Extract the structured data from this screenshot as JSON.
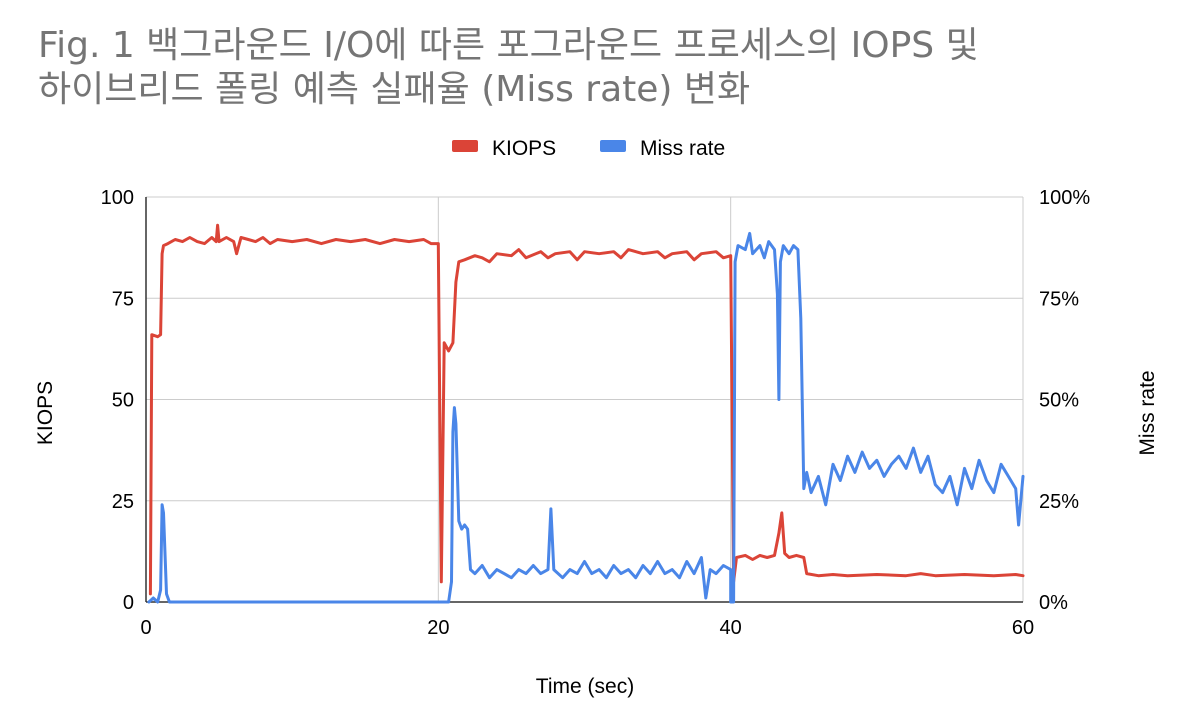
{
  "title_line1": "Fig. 1 백그라운드 I/O에 따른 포그라운드 프로세스의 IOPS 및",
  "title_line2": "하이브리드 폴링 예측 실패율 (Miss rate) 변화",
  "colors": {
    "kiops": "#db4437",
    "miss_rate": "#4a86e8",
    "grid": "#cccccc",
    "axis": "#333333"
  },
  "chart_data": {
    "type": "line",
    "title": "Fig. 1 백그라운드 I/O에 따른 포그라운드 프로세스의 IOPS 및 하이브리드 폴링 예측 실패율 (Miss rate) 변화",
    "xlabel": "Time (sec)",
    "ylabel": "KIOPS",
    "y2label": "Miss rate",
    "xlim": [
      0,
      60
    ],
    "ylim": [
      0,
      100
    ],
    "y2lim": [
      0,
      1
    ],
    "x_ticks": [
      "0",
      "20",
      "40",
      "60"
    ],
    "y_ticks": [
      "0",
      "25",
      "50",
      "75",
      "100"
    ],
    "y2_ticks": [
      "0%",
      "25%",
      "50%",
      "75%",
      "100%"
    ],
    "legend_position": "top",
    "grid": true,
    "series": [
      {
        "name": "KIOPS",
        "axis": "left",
        "points": [
          [
            0.3,
            2
          ],
          [
            0.4,
            66
          ],
          [
            0.8,
            65.5
          ],
          [
            1.0,
            66
          ],
          [
            1.1,
            86
          ],
          [
            1.2,
            88
          ],
          [
            1.5,
            88.5
          ],
          [
            2,
            89.5
          ],
          [
            2.5,
            89
          ],
          [
            3,
            90
          ],
          [
            3.5,
            89
          ],
          [
            4,
            88.5
          ],
          [
            4.5,
            90
          ],
          [
            4.8,
            89
          ],
          [
            4.9,
            93
          ],
          [
            5.0,
            89
          ],
          [
            5.5,
            90
          ],
          [
            6,
            89
          ],
          [
            6.2,
            86
          ],
          [
            6.5,
            90
          ],
          [
            7,
            89.5
          ],
          [
            7.5,
            89
          ],
          [
            8,
            90
          ],
          [
            8.5,
            88.5
          ],
          [
            9,
            89.5
          ],
          [
            10,
            89
          ],
          [
            11,
            89.5
          ],
          [
            12,
            88.5
          ],
          [
            13,
            89.5
          ],
          [
            14,
            89
          ],
          [
            15,
            89.5
          ],
          [
            16,
            88.5
          ],
          [
            17,
            89.5
          ],
          [
            18,
            89
          ],
          [
            19,
            89.5
          ],
          [
            19.5,
            88.5
          ],
          [
            20.0,
            88.5
          ],
          [
            20.2,
            5
          ],
          [
            20.4,
            64
          ],
          [
            20.7,
            62
          ],
          [
            21.0,
            64
          ],
          [
            21.2,
            79
          ],
          [
            21.4,
            84
          ],
          [
            21.8,
            84.5
          ],
          [
            22.5,
            85.5
          ],
          [
            23,
            85
          ],
          [
            23.5,
            84
          ],
          [
            24,
            86
          ],
          [
            25,
            85.5
          ],
          [
            25.5,
            87
          ],
          [
            26,
            85
          ],
          [
            27,
            86.5
          ],
          [
            27.5,
            85
          ],
          [
            28,
            86
          ],
          [
            29,
            86.5
          ],
          [
            29.5,
            84.5
          ],
          [
            30,
            86.5
          ],
          [
            31,
            86
          ],
          [
            32,
            86.5
          ],
          [
            32.5,
            85
          ],
          [
            33,
            87
          ],
          [
            34,
            86
          ],
          [
            35,
            86.5
          ],
          [
            35.5,
            85
          ],
          [
            36,
            86
          ],
          [
            37,
            86.5
          ],
          [
            37.5,
            84.5
          ],
          [
            38,
            86
          ],
          [
            39,
            86.5
          ],
          [
            39.5,
            85
          ],
          [
            40.0,
            85.5
          ],
          [
            40.2,
            5
          ],
          [
            40.4,
            11
          ],
          [
            41,
            11.5
          ],
          [
            41.5,
            10.5
          ],
          [
            42,
            11.5
          ],
          [
            42.5,
            11
          ],
          [
            43,
            11.5
          ],
          [
            43.3,
            17
          ],
          [
            43.5,
            22
          ],
          [
            43.7,
            12
          ],
          [
            44,
            11
          ],
          [
            44.5,
            11.5
          ],
          [
            45,
            11
          ],
          [
            45.2,
            7
          ],
          [
            46,
            6.5
          ],
          [
            47,
            6.8
          ],
          [
            48,
            6.5
          ],
          [
            50,
            6.8
          ],
          [
            52,
            6.5
          ],
          [
            53,
            7
          ],
          [
            54,
            6.5
          ],
          [
            56,
            6.8
          ],
          [
            58,
            6.5
          ],
          [
            59.5,
            6.8
          ],
          [
            60,
            6.5
          ]
        ]
      },
      {
        "name": "Miss rate",
        "axis": "right",
        "points": [
          [
            0.2,
            0
          ],
          [
            0.5,
            0.01
          ],
          [
            0.8,
            0.0
          ],
          [
            1.0,
            0.03
          ],
          [
            1.1,
            0.24
          ],
          [
            1.2,
            0.22
          ],
          [
            1.4,
            0.02
          ],
          [
            1.6,
            0.0
          ],
          [
            3,
            0.0
          ],
          [
            10,
            0.0
          ],
          [
            19.9,
            0.0
          ],
          [
            20.0,
            0.0
          ],
          [
            20.5,
            0.0
          ],
          [
            20.7,
            0.0
          ],
          [
            20.9,
            0.05
          ],
          [
            21.0,
            0.42
          ],
          [
            21.1,
            0.48
          ],
          [
            21.2,
            0.44
          ],
          [
            21.4,
            0.2
          ],
          [
            21.6,
            0.18
          ],
          [
            21.8,
            0.19
          ],
          [
            22.0,
            0.18
          ],
          [
            22.2,
            0.08
          ],
          [
            22.5,
            0.07
          ],
          [
            23,
            0.09
          ],
          [
            23.5,
            0.06
          ],
          [
            24,
            0.08
          ],
          [
            24.5,
            0.07
          ],
          [
            25,
            0.06
          ],
          [
            25.5,
            0.08
          ],
          [
            26,
            0.07
          ],
          [
            26.5,
            0.09
          ],
          [
            27,
            0.07
          ],
          [
            27.5,
            0.08
          ],
          [
            27.7,
            0.23
          ],
          [
            27.9,
            0.08
          ],
          [
            28.5,
            0.06
          ],
          [
            29,
            0.08
          ],
          [
            29.5,
            0.07
          ],
          [
            30,
            0.1
          ],
          [
            30.5,
            0.07
          ],
          [
            31,
            0.08
          ],
          [
            31.5,
            0.06
          ],
          [
            32,
            0.09
          ],
          [
            32.5,
            0.07
          ],
          [
            33,
            0.08
          ],
          [
            33.5,
            0.06
          ],
          [
            34,
            0.09
          ],
          [
            34.5,
            0.07
          ],
          [
            35,
            0.1
          ],
          [
            35.5,
            0.07
          ],
          [
            36,
            0.08
          ],
          [
            36.5,
            0.06
          ],
          [
            37,
            0.1
          ],
          [
            37.5,
            0.07
          ],
          [
            38,
            0.11
          ],
          [
            38.3,
            0.01
          ],
          [
            38.6,
            0.08
          ],
          [
            39,
            0.07
          ],
          [
            39.5,
            0.09
          ],
          [
            40.0,
            0.08
          ],
          [
            40.0,
            0.0
          ],
          [
            40.2,
            0.0
          ],
          [
            40.3,
            0.84
          ],
          [
            40.5,
            0.88
          ],
          [
            41,
            0.87
          ],
          [
            41.3,
            0.91
          ],
          [
            41.5,
            0.86
          ],
          [
            42,
            0.88
          ],
          [
            42.3,
            0.85
          ],
          [
            42.6,
            0.89
          ],
          [
            43.0,
            0.87
          ],
          [
            43.2,
            0.76
          ],
          [
            43.3,
            0.5
          ],
          [
            43.4,
            0.84
          ],
          [
            43.6,
            0.88
          ],
          [
            44.0,
            0.86
          ],
          [
            44.3,
            0.88
          ],
          [
            44.6,
            0.87
          ],
          [
            44.8,
            0.7
          ],
          [
            45.0,
            0.28
          ],
          [
            45.2,
            0.32
          ],
          [
            45.5,
            0.27
          ],
          [
            46,
            0.31
          ],
          [
            46.5,
            0.24
          ],
          [
            47,
            0.34
          ],
          [
            47.5,
            0.3
          ],
          [
            48,
            0.36
          ],
          [
            48.5,
            0.32
          ],
          [
            49,
            0.37
          ],
          [
            49.5,
            0.33
          ],
          [
            50,
            0.35
          ],
          [
            50.5,
            0.31
          ],
          [
            51,
            0.34
          ],
          [
            51.5,
            0.36
          ],
          [
            52,
            0.33
          ],
          [
            52.5,
            0.38
          ],
          [
            53,
            0.32
          ],
          [
            53.5,
            0.36
          ],
          [
            54,
            0.29
          ],
          [
            54.5,
            0.27
          ],
          [
            55,
            0.31
          ],
          [
            55.5,
            0.24
          ],
          [
            56,
            0.33
          ],
          [
            56.5,
            0.28
          ],
          [
            57,
            0.35
          ],
          [
            57.5,
            0.3
          ],
          [
            58,
            0.27
          ],
          [
            58.5,
            0.34
          ],
          [
            59,
            0.31
          ],
          [
            59.5,
            0.28
          ],
          [
            59.7,
            0.19
          ],
          [
            60.0,
            0.31
          ]
        ]
      }
    ]
  }
}
